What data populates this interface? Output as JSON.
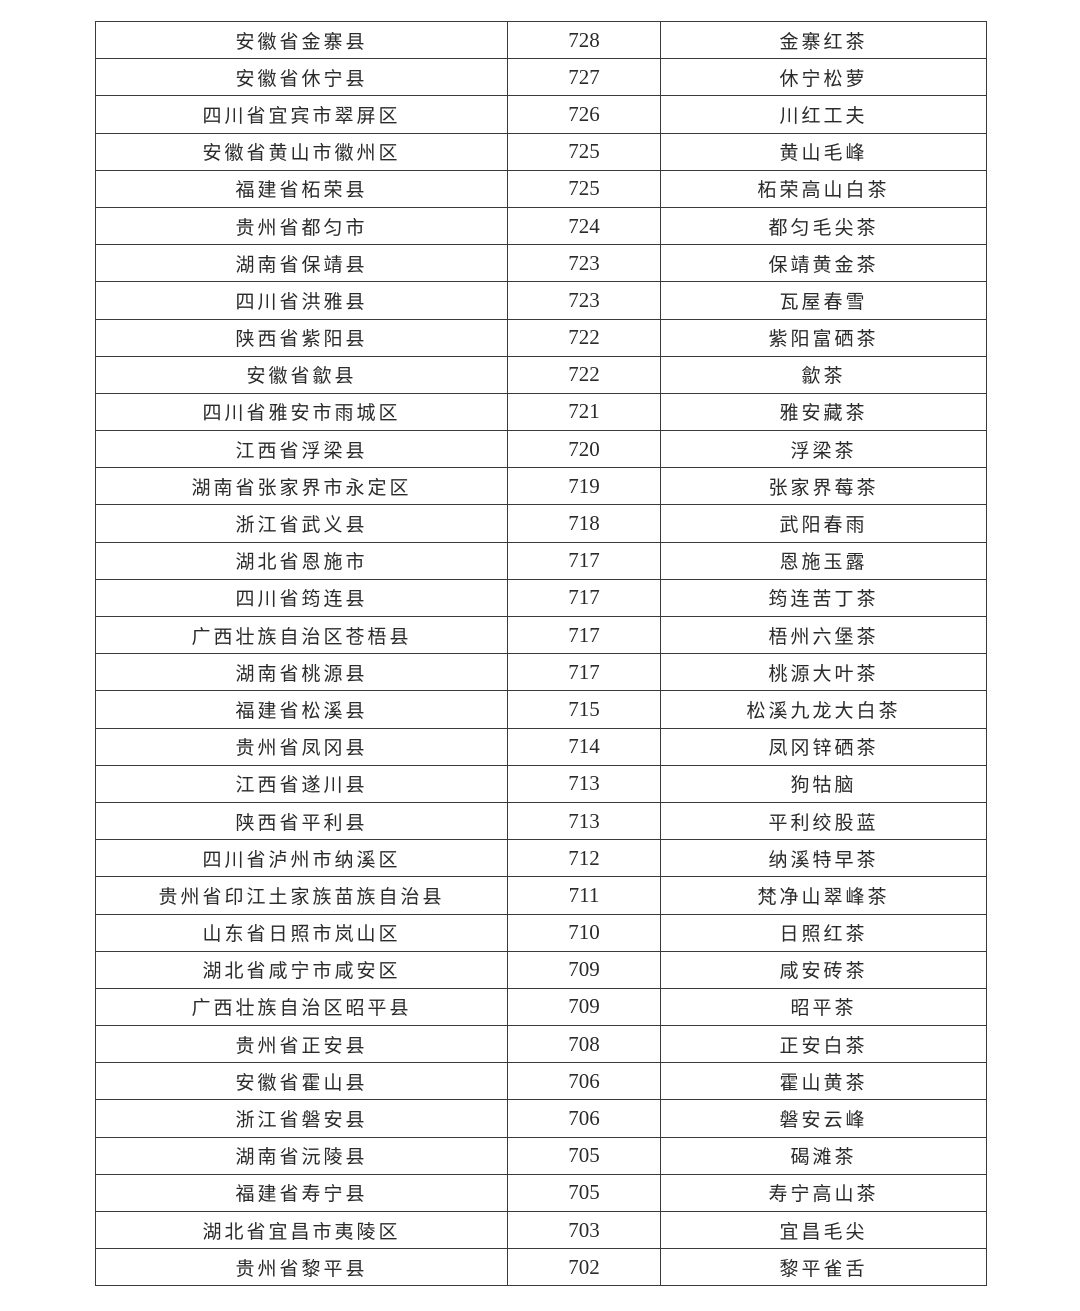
{
  "table": {
    "rows": [
      [
        "安徽省金寨县",
        "728",
        "金寨红茶"
      ],
      [
        "安徽省休宁县",
        "727",
        "休宁松萝"
      ],
      [
        "四川省宜宾市翠屏区",
        "726",
        "川红工夫"
      ],
      [
        "安徽省黄山市徽州区",
        "725",
        "黄山毛峰"
      ],
      [
        "福建省柘荣县",
        "725",
        "柘荣高山白茶"
      ],
      [
        "贵州省都匀市",
        "724",
        "都匀毛尖茶"
      ],
      [
        "湖南省保靖县",
        "723",
        "保靖黄金茶"
      ],
      [
        "四川省洪雅县",
        "723",
        "瓦屋春雪"
      ],
      [
        "陕西省紫阳县",
        "722",
        "紫阳富硒茶"
      ],
      [
        "安徽省歙县",
        "722",
        "歙茶"
      ],
      [
        "四川省雅安市雨城区",
        "721",
        "雅安藏茶"
      ],
      [
        "江西省浮梁县",
        "720",
        "浮梁茶"
      ],
      [
        "湖南省张家界市永定区",
        "719",
        "张家界莓茶"
      ],
      [
        "浙江省武义县",
        "718",
        "武阳春雨"
      ],
      [
        "湖北省恩施市",
        "717",
        "恩施玉露"
      ],
      [
        "四川省筠连县",
        "717",
        "筠连苦丁茶"
      ],
      [
        "广西壮族自治区苍梧县",
        "717",
        "梧州六堡茶"
      ],
      [
        "湖南省桃源县",
        "717",
        "桃源大叶茶"
      ],
      [
        "福建省松溪县",
        "715",
        "松溪九龙大白茶"
      ],
      [
        "贵州省凤冈县",
        "714",
        "凤冈锌硒茶"
      ],
      [
        "江西省遂川县",
        "713",
        "狗牯脑"
      ],
      [
        "陕西省平利县",
        "713",
        "平利绞股蓝"
      ],
      [
        "四川省泸州市纳溪区",
        "712",
        "纳溪特早茶"
      ],
      [
        "贵州省印江土家族苗族自治县",
        "711",
        "梵净山翠峰茶"
      ],
      [
        "山东省日照市岚山区",
        "710",
        "日照红茶"
      ],
      [
        "湖北省咸宁市咸安区",
        "709",
        "咸安砖茶"
      ],
      [
        "广西壮族自治区昭平县",
        "709",
        "昭平茶"
      ],
      [
        "贵州省正安县",
        "708",
        "正安白茶"
      ],
      [
        "安徽省霍山县",
        "706",
        "霍山黄茶"
      ],
      [
        "浙江省磐安县",
        "706",
        "磐安云峰"
      ],
      [
        "湖南省沅陵县",
        "705",
        "碣滩茶"
      ],
      [
        "福建省寿宁县",
        "705",
        "寿宁高山茶"
      ],
      [
        "湖北省宜昌市夷陵区",
        "703",
        "宜昌毛尖"
      ],
      [
        "贵州省黎平县",
        "702",
        "黎平雀舌"
      ]
    ]
  }
}
